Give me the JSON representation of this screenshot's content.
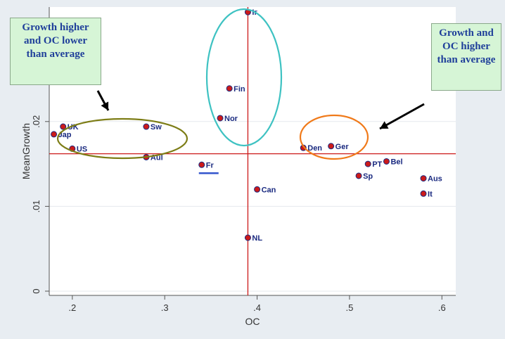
{
  "chart_data": {
    "type": "scatter",
    "xlabel": "OC",
    "ylabel": "MeanGrowth",
    "xlim": [
      0.175,
      0.615
    ],
    "ylim": [
      -0.0005,
      0.0335
    ],
    "xticks": [
      {
        "value": 0.2,
        "label": ".2"
      },
      {
        "value": 0.3,
        "label": ".3"
      },
      {
        "value": 0.4,
        "label": ".4"
      },
      {
        "value": 0.5,
        "label": ".5"
      },
      {
        "value": 0.6,
        "label": ".6"
      }
    ],
    "yticks": [
      {
        "value": 0,
        "label": "0"
      },
      {
        "value": 0.01,
        "label": ".01"
      },
      {
        "value": 0.02,
        "label": ".02"
      }
    ],
    "grid": "horizontal",
    "points": [
      {
        "label": "Ir",
        "x": 0.39,
        "y": 0.0329
      },
      {
        "label": "Fin",
        "x": 0.37,
        "y": 0.0239
      },
      {
        "label": "Nor",
        "x": 0.36,
        "y": 0.0204
      },
      {
        "label": "UK",
        "x": 0.19,
        "y": 0.0194
      },
      {
        "label": "Jap",
        "x": 0.18,
        "y": 0.0185
      },
      {
        "label": "Sw",
        "x": 0.28,
        "y": 0.0194
      },
      {
        "label": "US",
        "x": 0.2,
        "y": 0.0168
      },
      {
        "label": "Aul",
        "x": 0.28,
        "y": 0.0158
      },
      {
        "label": "Fr",
        "x": 0.34,
        "y": 0.0149
      },
      {
        "label": "Den",
        "x": 0.45,
        "y": 0.0169
      },
      {
        "label": "Ger",
        "x": 0.48,
        "y": 0.0171
      },
      {
        "label": "PT",
        "x": 0.52,
        "y": 0.015
      },
      {
        "label": "Bel",
        "x": 0.54,
        "y": 0.0153
      },
      {
        "label": "Sp",
        "x": 0.51,
        "y": 0.0136
      },
      {
        "label": "Can",
        "x": 0.4,
        "y": 0.012
      },
      {
        "label": "Aus",
        "x": 0.58,
        "y": 0.0133
      },
      {
        "label": "It",
        "x": 0.58,
        "y": 0.0115
      },
      {
        "label": "NL",
        "x": 0.39,
        "y": 0.0063
      }
    ],
    "reference_lines": {
      "x_mean": 0.39,
      "y_mean": 0.0162
    },
    "annotations": [
      {
        "text": "Growth higher and OC lower than average",
        "fill": "#d6f5d6",
        "text_color": "#1f3f9a"
      },
      {
        "text": "Growth and OC higher than average",
        "fill": "#d6f5d6",
        "text_color": "#1f3f9a"
      }
    ],
    "colors": {
      "point_fill": "#cc1a1a",
      "point_edge": "#1a2a80",
      "label": "#1a2a80",
      "mean_lines": "#cc1a1a",
      "ellipse_left": "#7d7d16",
      "ellipse_middle": "#3ec2c2",
      "ellipse_right": "#f07a1a",
      "arrow": "#000000",
      "fr_underline": "#3355cc",
      "plot_background": "#ffffff",
      "outer_background": "#e8edf2"
    }
  }
}
